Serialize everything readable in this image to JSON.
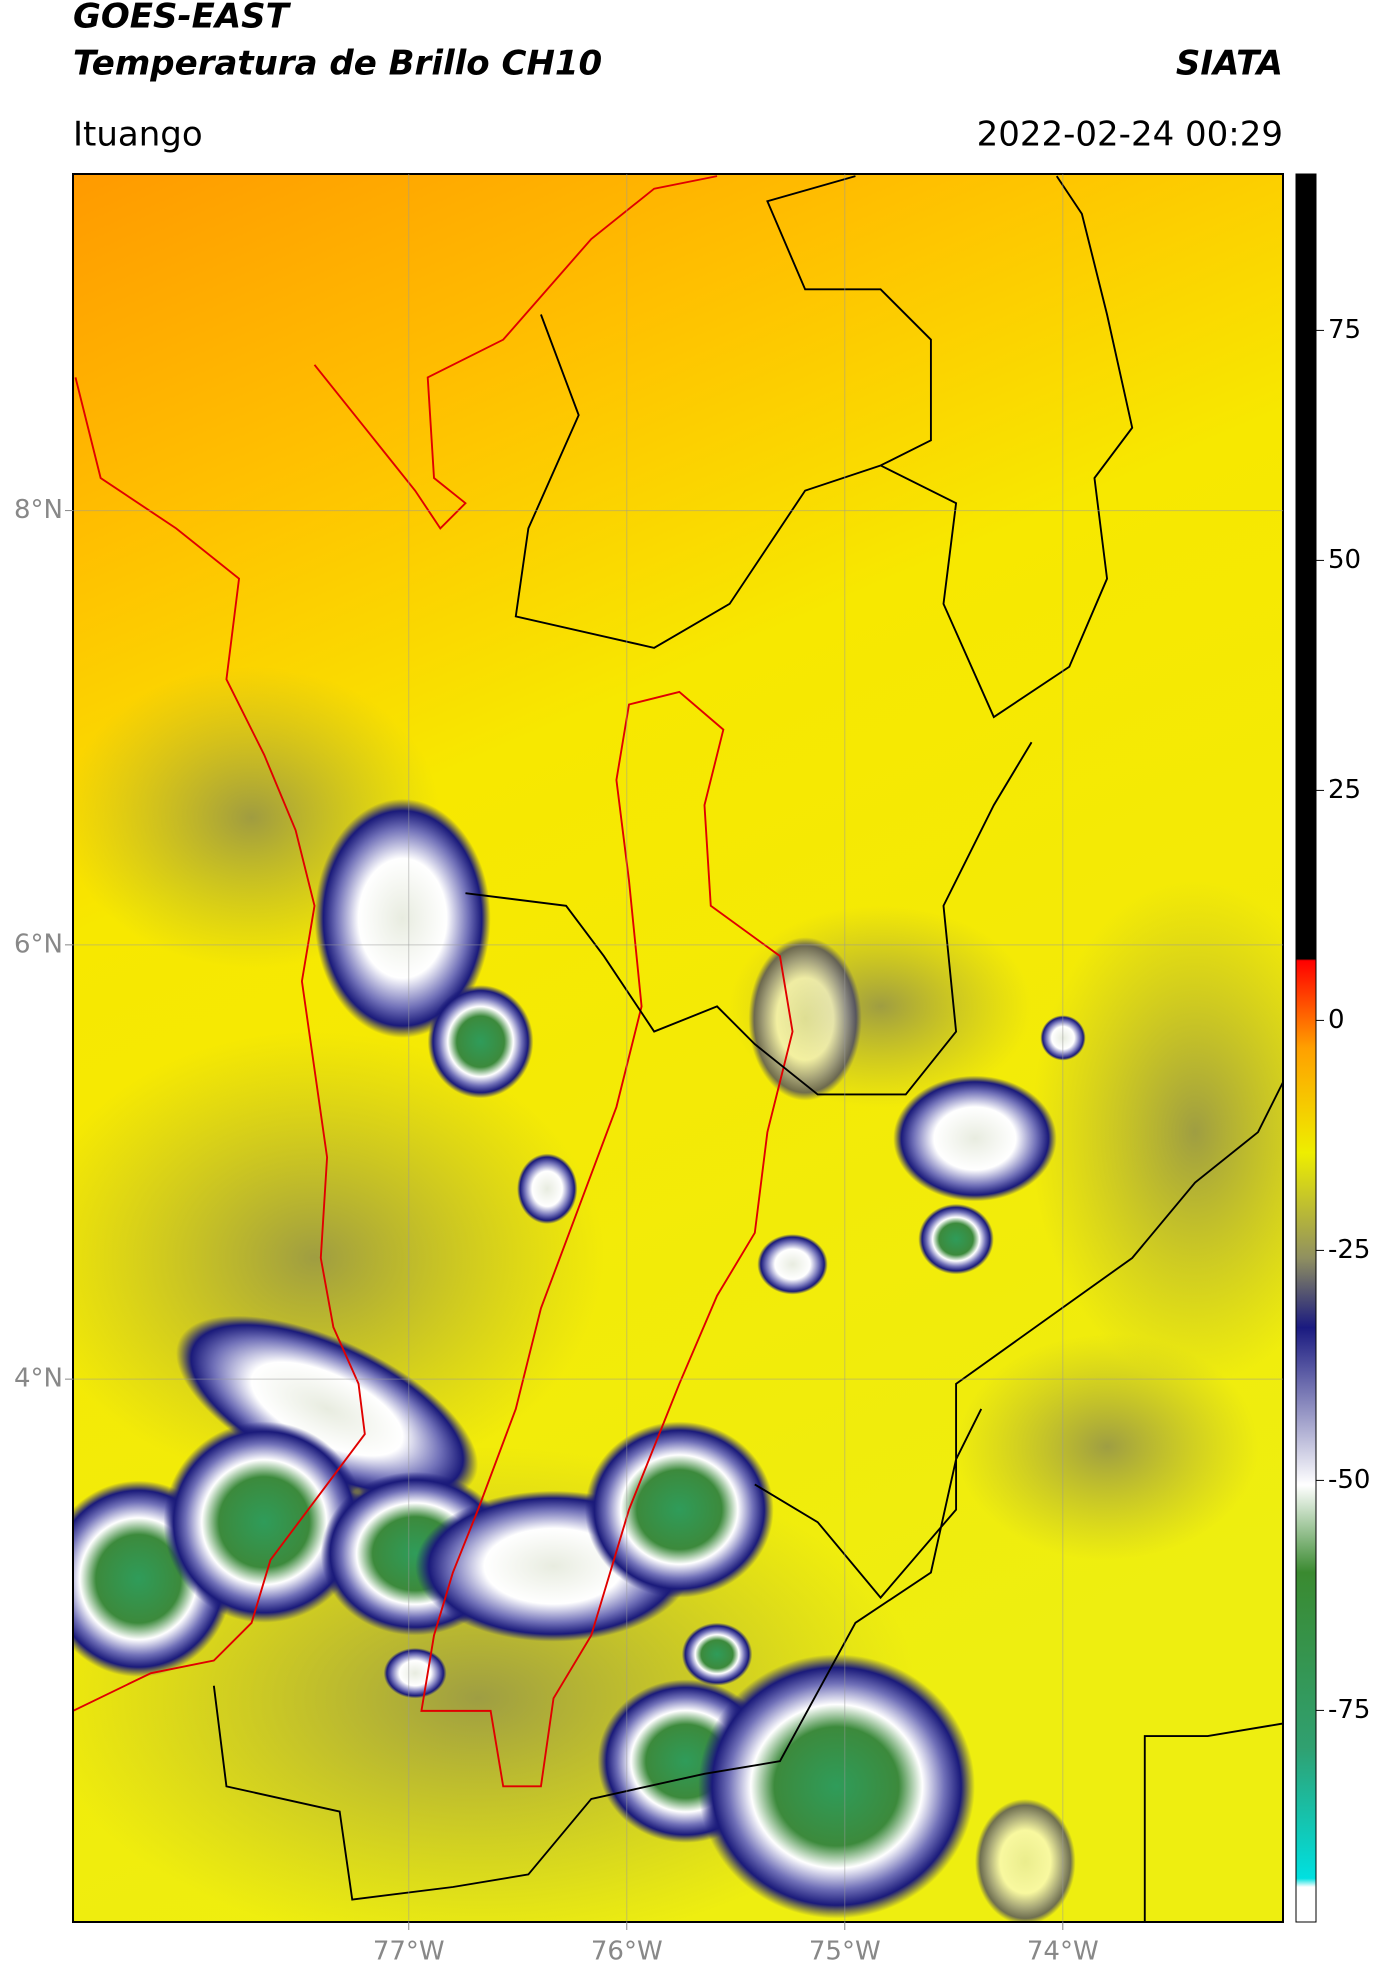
{
  "header": {
    "satellite": "GOES-EAST",
    "product": "Temperatura de Brillo CH10",
    "source": "SIATA",
    "region": "Ituango",
    "datetime": "2022-02-24 00:29"
  },
  "map": {
    "lonlim": [
      -78.54,
      -72.99
    ],
    "latlim": [
      1.5,
      9.55
    ],
    "lat_ticks": [
      {
        "value": 8,
        "label": "8°N"
      },
      {
        "value": 6,
        "label": "6°N"
      },
      {
        "value": 4,
        "label": "4°N"
      }
    ],
    "lon_ticks": [
      {
        "value": -77,
        "label": "77°W"
      },
      {
        "value": -76,
        "label": "76°W"
      },
      {
        "value": -75,
        "label": "75°W"
      },
      {
        "value": -74,
        "label": "74°W"
      }
    ],
    "grid": true
  },
  "colorbar": {
    "lim": [
      -98,
      92
    ],
    "ticks": [
      75,
      50,
      25,
      0,
      -25,
      -50,
      -75
    ]
  }
}
